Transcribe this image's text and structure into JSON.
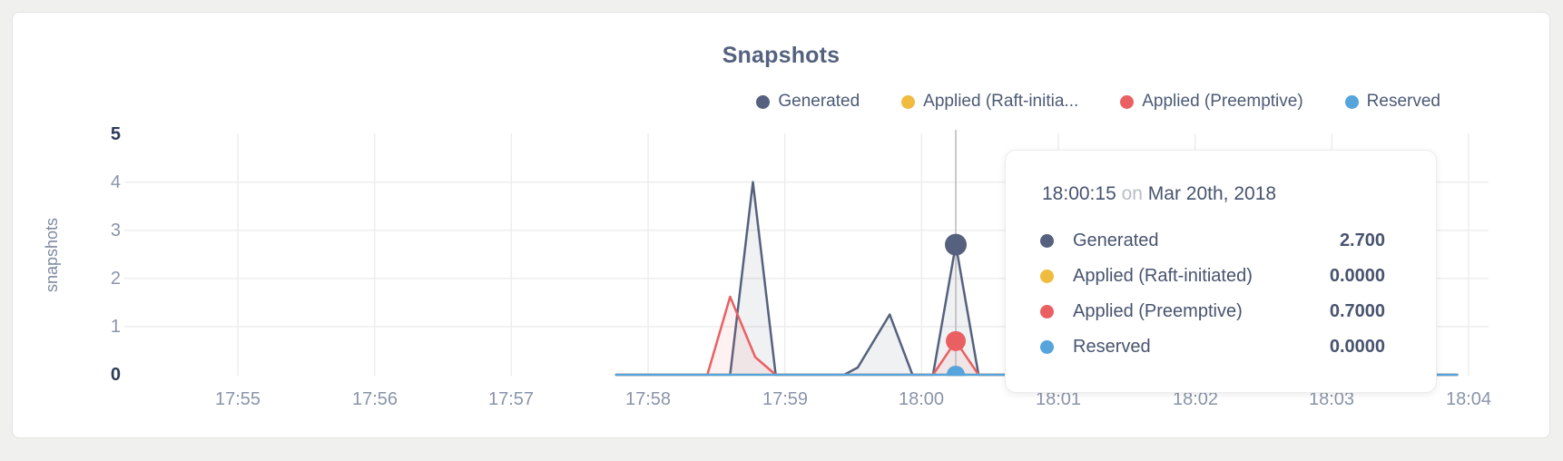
{
  "chart": {
    "title": "Snapshots",
    "legend": [
      {
        "label": "Generated",
        "color": "#55617e"
      },
      {
        "label": "Applied (Raft-initia...",
        "color": "#efbc3f"
      },
      {
        "label": "Applied (Preemptive)",
        "color": "#ea6062"
      },
      {
        "label": "Reserved",
        "color": "#55a4db"
      }
    ],
    "y_axis": {
      "label": "snapshots",
      "ticks": [
        "5",
        "4",
        "3",
        "2",
        "1",
        "0"
      ]
    },
    "x_axis": {
      "ticks": [
        "17:55",
        "17:56",
        "17:57",
        "17:58",
        "17:59",
        "18:00",
        "18:01",
        "18:02",
        "18:03",
        "18:04"
      ]
    }
  },
  "tooltip": {
    "time": "18:00:15",
    "on": "on",
    "date": "Mar 20th, 2018",
    "rows": [
      {
        "label": "Generated",
        "value": "2.700",
        "color": "#55617e"
      },
      {
        "label": "Applied (Raft-initiated)",
        "value": "0.0000",
        "color": "#efbc3f"
      },
      {
        "label": "Applied (Preemptive)",
        "value": "0.7000",
        "color": "#ea6062"
      },
      {
        "label": "Reserved",
        "value": "0.0000",
        "color": "#55a4db"
      }
    ]
  },
  "chart_data": {
    "type": "area-line",
    "title": "Snapshots",
    "xlabel": "",
    "ylabel": "snapshots",
    "ylim": [
      0,
      5
    ],
    "x_ticks": [
      "17:55",
      "17:56",
      "17:57",
      "17:58",
      "17:59",
      "18:00",
      "18:01",
      "18:02",
      "18:03",
      "18:04"
    ],
    "grid": true,
    "legend_position": "top-right",
    "series": [
      {
        "name": "Generated",
        "color": "#55617e",
        "points": [
          [
            "17:57:46",
            0
          ],
          [
            "17:58:36",
            0
          ],
          [
            "17:58:46",
            4.0
          ],
          [
            "17:58:56",
            0
          ],
          [
            "17:59:26",
            0
          ],
          [
            "17:59:32",
            0.15
          ],
          [
            "17:59:46",
            1.25
          ],
          [
            "17:59:56",
            0
          ],
          [
            "18:00:05",
            0
          ],
          [
            "18:00:15",
            2.7
          ],
          [
            "18:00:25",
            0
          ],
          [
            "18:03:55",
            0
          ]
        ]
      },
      {
        "name": "Applied (Raft-initiated)",
        "color": "#efbc3f",
        "points": [
          [
            "17:57:46",
            0
          ],
          [
            "18:03:55",
            0
          ]
        ]
      },
      {
        "name": "Applied (Preemptive)",
        "color": "#ea6062",
        "points": [
          [
            "17:57:46",
            0
          ],
          [
            "17:58:26",
            0
          ],
          [
            "17:58:36",
            1.62
          ],
          [
            "17:58:47",
            0.37
          ],
          [
            "17:58:56",
            0
          ],
          [
            "18:00:05",
            0
          ],
          [
            "18:00:15",
            0.7
          ],
          [
            "18:00:25",
            0
          ],
          [
            "18:03:55",
            0
          ]
        ]
      },
      {
        "name": "Reserved",
        "color": "#55a4db",
        "points": [
          [
            "17:57:46",
            0
          ],
          [
            "18:03:55",
            0
          ]
        ]
      }
    ],
    "hover": {
      "time": "18:00:15",
      "values": {
        "Generated": 2.7,
        "Applied (Raft-initiated)": 0.0,
        "Applied (Preemptive)": 0.7,
        "Reserved": 0.0
      }
    }
  }
}
